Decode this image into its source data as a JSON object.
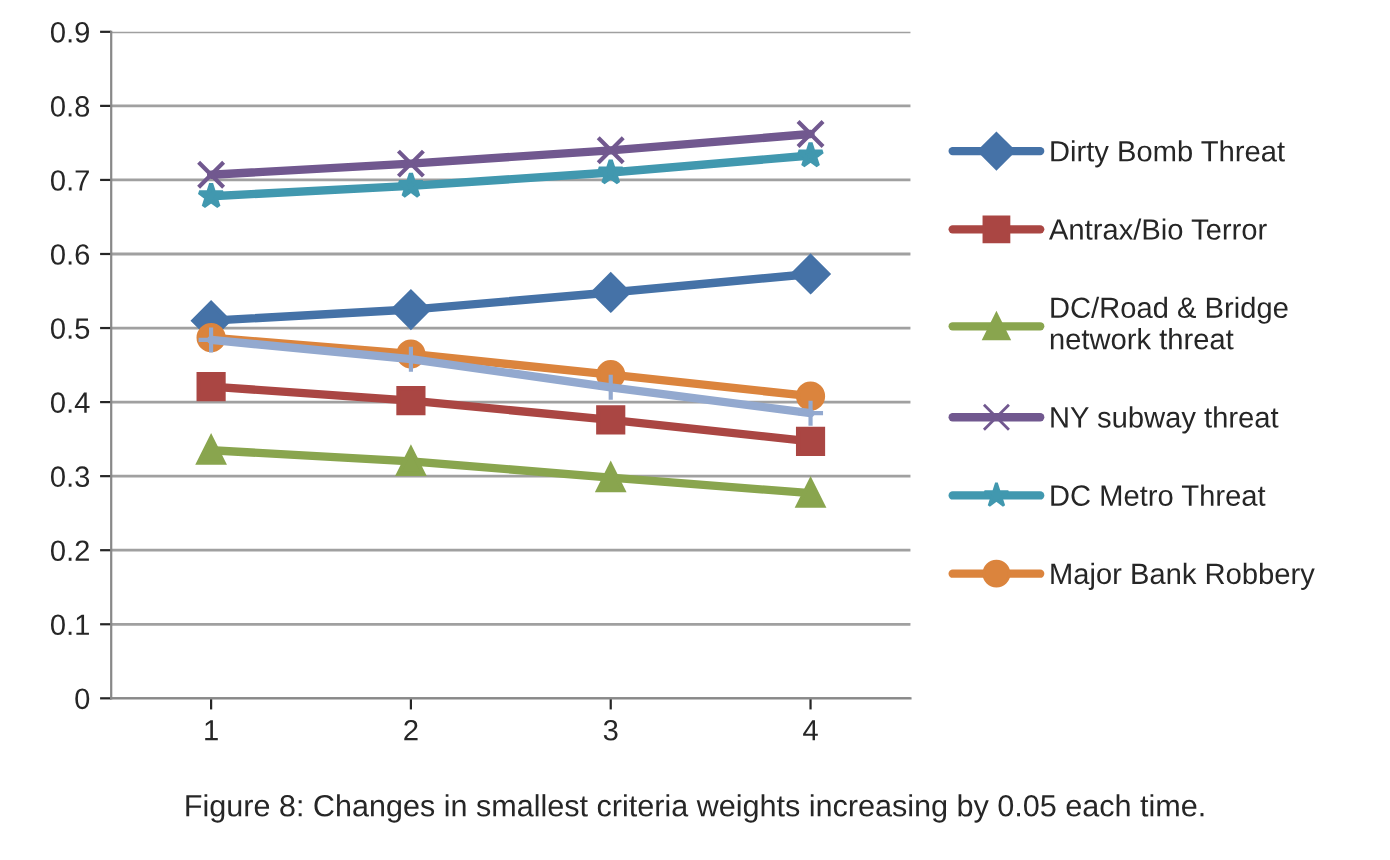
{
  "chart_data": {
    "type": "line",
    "categories": [
      "1",
      "2",
      "3",
      "4"
    ],
    "series": [
      {
        "name": "Dirty Bomb Threat",
        "color": "#4572a7",
        "marker": "diamond",
        "values": [
          0.51,
          0.525,
          0.548,
          0.573
        ]
      },
      {
        "name": "Antrax/Bio Terror",
        "color": "#aa4643",
        "marker": "square",
        "values": [
          0.421,
          0.402,
          0.376,
          0.347
        ]
      },
      {
        "name": "DC/Road & Bridge\nnetwork threat",
        "color": "#89a54e",
        "marker": "triangle",
        "values": [
          0.335,
          0.32,
          0.298,
          0.277
        ]
      },
      {
        "name": "NY subway threat",
        "color": "#71588f",
        "marker": "cross",
        "values": [
          0.707,
          0.722,
          0.74,
          0.762
        ]
      },
      {
        "name": "DC Metro Threat",
        "color": "#4198af",
        "marker": "star",
        "values": [
          0.678,
          0.692,
          0.71,
          0.733
        ]
      },
      {
        "name": "Major Bank Robbery",
        "color": "#db843d",
        "marker": "circle",
        "values": [
          0.487,
          0.465,
          0.437,
          0.408
        ]
      },
      {
        "color": "#93a9cf",
        "marker": "plus",
        "values": [
          0.484,
          0.458,
          0.42,
          0.385
        ]
      }
    ],
    "ylim": [
      0,
      0.9
    ],
    "yticks": [
      0,
      0.1,
      0.2,
      0.3,
      0.4,
      0.5,
      0.6,
      0.7,
      0.8,
      0.9
    ],
    "grid": "y",
    "legend": "right",
    "annotations": [
      "Figure 8: Changes in smallest criteria weights increasing by 0.05 each time."
    ]
  }
}
